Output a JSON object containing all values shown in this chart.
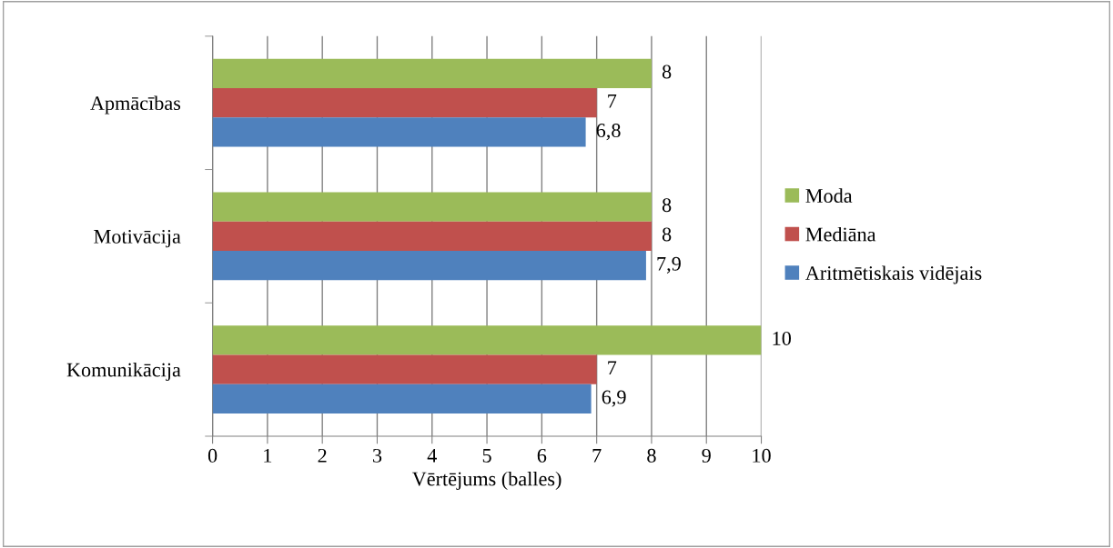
{
  "chart_data": {
    "type": "bar",
    "orientation": "horizontal",
    "categories": [
      "Apmācības",
      "Motivācija",
      "Komunikācija"
    ],
    "series": [
      {
        "name": "Moda",
        "color": "#9bbb59",
        "values": [
          8,
          8,
          10
        ],
        "value_labels": [
          "8",
          "8",
          "10"
        ]
      },
      {
        "name": "Mediāna",
        "color": "#c0504d",
        "values": [
          7,
          8,
          7
        ],
        "value_labels": [
          "7",
          "8",
          "7"
        ]
      },
      {
        "name": "Aritmētiskais vidējais",
        "color": "#4f81bd",
        "values": [
          6.8,
          7.9,
          6.9
        ],
        "value_labels": [
          "6,8",
          "7,9",
          "6,9"
        ]
      }
    ],
    "xlabel": "Vērtējums (balles)",
    "xlim": [
      0,
      10
    ],
    "xticks": [
      0,
      1,
      2,
      3,
      4,
      5,
      6,
      7,
      8,
      9,
      10
    ],
    "grid": "x",
    "legend": "right"
  }
}
